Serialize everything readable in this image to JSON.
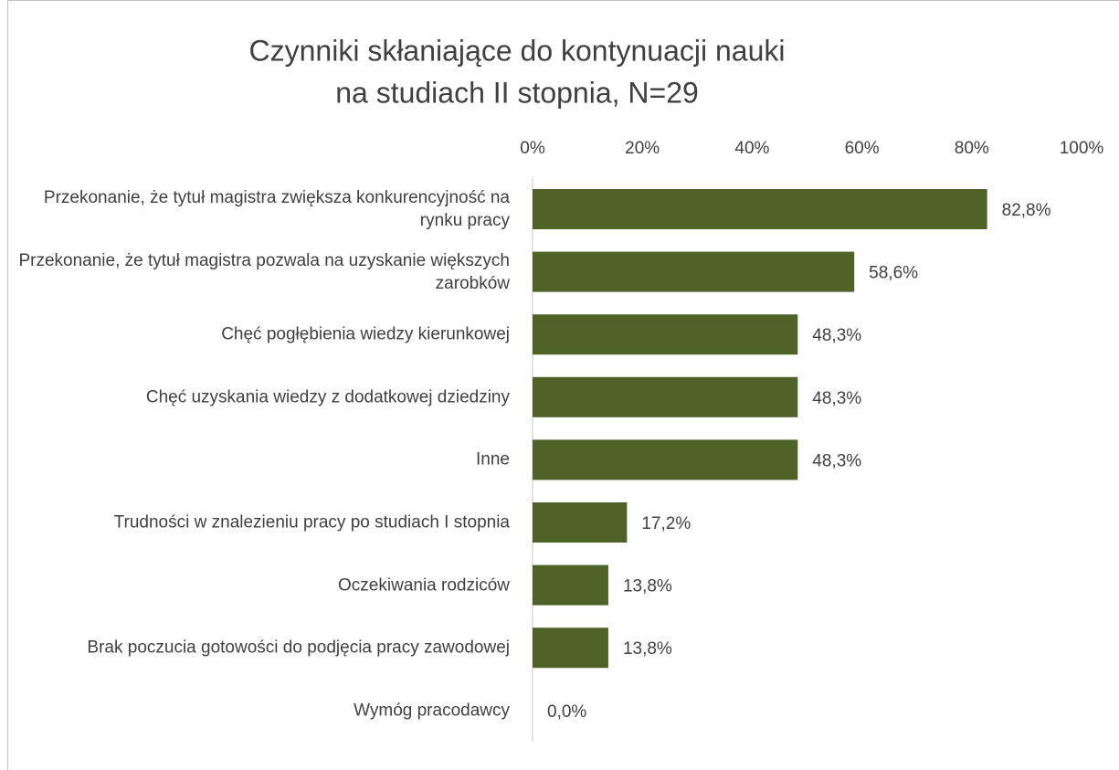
{
  "chart_data": {
    "type": "barh",
    "title": [
      "Czynniki skłaniające do kontynuacji nauki",
      "na studiach II stopnia, N=29"
    ],
    "categories": [
      "Przekonanie, że tytuł magistra zwiększa konkurencyjność na rynku pracy",
      "Przekonanie, że tytuł magistra pozwala na uzyskanie większych zarobków",
      "Chęć pogłębienia wiedzy kierunkowej",
      "Chęć uzyskania wiedzy z dodatkowej dziedziny",
      "Inne",
      "Trudności w znalezieniu pracy po studiach I stopnia",
      "Oczekiwania rodziców",
      "Brak poczucia gotowości do podjęcia pracy zawodowej",
      "Wymóg pracodawcy"
    ],
    "values": [
      82.8,
      58.6,
      48.3,
      48.3,
      48.3,
      17.2,
      13.8,
      13.8,
      0.0
    ],
    "value_labels": [
      "82,8%",
      "58,6%",
      "48,3%",
      "48,3%",
      "48,3%",
      "17,2%",
      "13,8%",
      "13,8%",
      "0,0%"
    ],
    "color": "#4f6228",
    "xlim": [
      0,
      100
    ],
    "xticks": [
      {
        "value": 0,
        "label": "0%"
      },
      {
        "value": 20,
        "label": "20%"
      },
      {
        "value": 40,
        "label": "40%"
      },
      {
        "value": 60,
        "label": "60%"
      },
      {
        "value": 80,
        "label": "80%"
      },
      {
        "value": 100,
        "label": "100%"
      }
    ],
    "grid": false
  }
}
